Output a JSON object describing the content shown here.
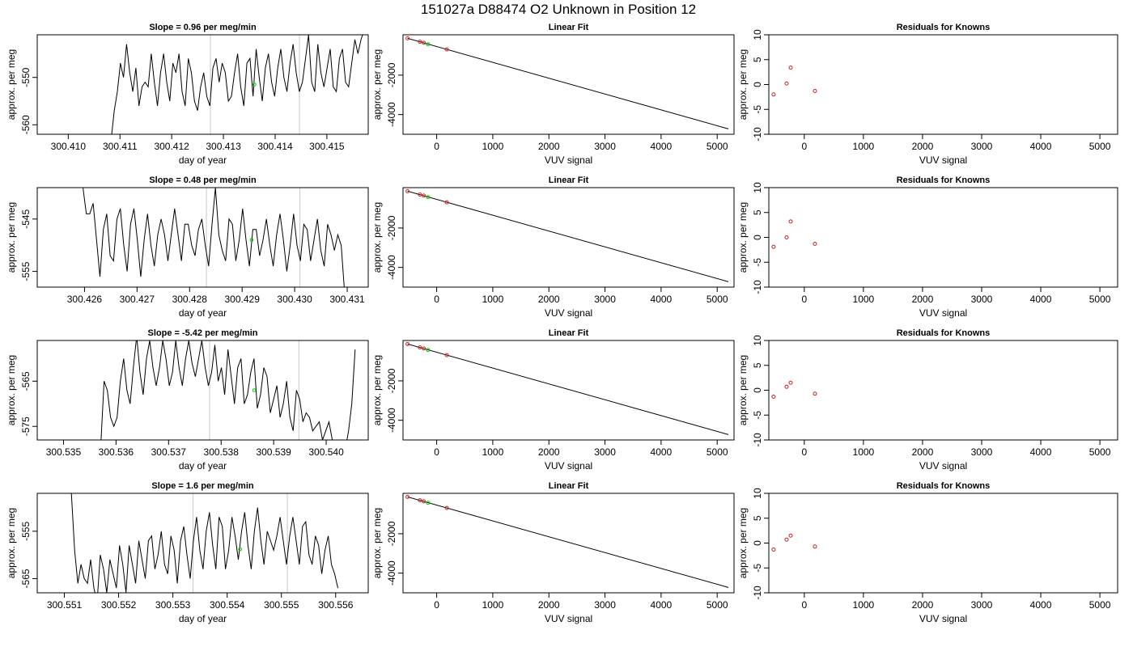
{
  "figure_title": "151027a     D88474   O2 Unknown in Position  12",
  "chart_data": [
    {
      "type": "line",
      "panel_kind": "timeseries",
      "title": "Slope =  0.96  per meg/min",
      "xlabel": "day of year",
      "ylabel": "approx. per meg",
      "xlim": [
        300.4094,
        300.4158
      ],
      "ylim": [
        -562.0,
        -541.0
      ],
      "xticks": [
        300.41,
        300.411,
        300.412,
        300.413,
        300.414,
        300.415
      ],
      "xtick_labels": [
        "300.410",
        "300.411",
        "300.412",
        "300.413",
        "300.414",
        "300.415"
      ],
      "yticks": [
        -550,
        -560
      ],
      "ytick_labels": [
        "-550",
        "-560"
      ],
      "vlines": [
        300.41275,
        300.41447
      ],
      "highlight_point": {
        "x": 300.4136,
        "y": -551.5
      },
      "series": [
        {
          "x_start": 300.41083,
          "x_end": 300.41572,
          "values": [
            -563,
            -557,
            -553,
            -547,
            -550,
            -543,
            -549,
            -553,
            -548,
            -556,
            -552,
            -551,
            -552,
            -545,
            -551,
            -556,
            -549,
            -545,
            -551,
            -555,
            -547,
            -549,
            -545,
            -553,
            -556,
            -546,
            -549,
            -555,
            -557,
            -552,
            -549,
            -554,
            -556,
            -548,
            -546,
            -551,
            -547,
            -549,
            -555,
            -554,
            -549,
            -545,
            -552,
            -556,
            -547,
            -546,
            -554,
            -544,
            -550,
            -555,
            -548,
            -545,
            -551,
            -554,
            -548,
            -544,
            -550,
            -553,
            -547,
            -543,
            -549,
            -553,
            -551,
            -546,
            -541,
            -551,
            -553,
            -543,
            -549,
            -552,
            -548,
            -544,
            -552,
            -553,
            -546,
            -544,
            -551,
            -552,
            -547,
            -542,
            -545,
            -542,
            -540
          ]
        }
      ]
    },
    {
      "type": "scatter",
      "panel_kind": "linear-fit",
      "title": "Linear Fit",
      "xlabel": "VUV signal",
      "ylabel": "approx. per meg",
      "xlim": [
        -600,
        5300
      ],
      "ylim": [
        -5000,
        50
      ],
      "xticks": [
        0,
        1000,
        2000,
        3000,
        4000,
        5000
      ],
      "xtick_labels": [
        "0",
        "1000",
        "2000",
        "3000",
        "4000",
        "5000"
      ],
      "yticks": [
        -2000,
        -4000
      ],
      "ytick_labels": [
        "-2000",
        "-4000"
      ],
      "line": {
        "x0": -520,
        "y0": -128,
        "x1": 5200,
        "y1": -4728
      },
      "known_points": [
        {
          "x": -520,
          "y": -128
        },
        {
          "x": -300,
          "y": -302
        },
        {
          "x": -230,
          "y": -354
        },
        {
          "x": 180,
          "y": -695
        }
      ],
      "unknown_point": {
        "x": -155,
        "y": -430
      }
    },
    {
      "type": "scatter",
      "panel_kind": "residuals",
      "title": "Residuals for Knowns",
      "xlabel": "VUV signal",
      "ylabel": "approx. per meg",
      "xlim": [
        -600,
        5300
      ],
      "ylim": [
        -10,
        10
      ],
      "xticks": [
        0,
        1000,
        2000,
        3000,
        4000,
        5000
      ],
      "xtick_labels": [
        "0",
        "1000",
        "2000",
        "3000",
        "4000",
        "5000"
      ],
      "yticks": [
        10,
        5,
        0,
        -5,
        -10
      ],
      "ytick_labels": [
        "10",
        "5",
        "0",
        "-5",
        "-10"
      ],
      "points": [
        {
          "x": -520,
          "y": -2.0
        },
        {
          "x": -300,
          "y": 0.2
        },
        {
          "x": -230,
          "y": 3.4
        },
        {
          "x": 180,
          "y": -1.3
        }
      ]
    },
    {
      "type": "line",
      "panel_kind": "timeseries",
      "title": "Slope =  0.48  per meg/min",
      "xlabel": "day of year",
      "ylabel": "approx. per meg",
      "xlim": [
        300.4251,
        300.4314
      ],
      "ylim": [
        -558.0,
        -539.0
      ],
      "xticks": [
        300.426,
        300.427,
        300.428,
        300.429,
        300.43,
        300.431
      ],
      "xtick_labels": [
        "300.426",
        "300.427",
        "300.428",
        "300.429",
        "300.430",
        "300.431"
      ],
      "yticks": [
        -545,
        -555
      ],
      "ytick_labels": [
        "-545",
        "-555"
      ],
      "vlines": [
        300.42832,
        300.4301
      ],
      "highlight_point": {
        "x": 300.42918,
        "y": -549.0
      },
      "series": [
        {
          "x_start": 300.42597,
          "x_end": 300.43095,
          "values": [
            -539,
            -544,
            -544,
            -542,
            -549,
            -556,
            -547,
            -544,
            -552,
            -553,
            -545,
            -543,
            -550,
            -555,
            -546,
            -543,
            -549,
            -556,
            -549,
            -544,
            -550,
            -554,
            -548,
            -545,
            -548,
            -553,
            -548,
            -543,
            -548,
            -553,
            -546,
            -546,
            -550,
            -552,
            -547,
            -545,
            -550,
            -554,
            -546,
            -539,
            -548,
            -551,
            -553,
            -545,
            -546,
            -553,
            -549,
            -543,
            -549,
            -554,
            -547,
            -547,
            -552,
            -549,
            -545,
            -550,
            -554,
            -548,
            -544,
            -549,
            -555,
            -550,
            -544,
            -550,
            -553,
            -546,
            -547,
            -553,
            -549,
            -545,
            -551,
            -554,
            -546,
            -548,
            -551,
            -548,
            -550,
            -559
          ]
        }
      ]
    },
    {
      "type": "scatter",
      "panel_kind": "linear-fit",
      "title": "Linear Fit",
      "xlabel": "VUV signal",
      "ylabel": "approx. per meg",
      "xlim": [
        -600,
        5300
      ],
      "ylim": [
        -5000,
        50
      ],
      "xticks": [
        0,
        1000,
        2000,
        3000,
        4000,
        5000
      ],
      "xtick_labels": [
        "0",
        "1000",
        "2000",
        "3000",
        "4000",
        "5000"
      ],
      "yticks": [
        -2000,
        -4000
      ],
      "ytick_labels": [
        "-2000",
        "-4000"
      ],
      "line": {
        "x0": -520,
        "y0": -128,
        "x1": 5200,
        "y1": -4728
      },
      "known_points": [
        {
          "x": -520,
          "y": -128
        },
        {
          "x": -300,
          "y": -302
        },
        {
          "x": -230,
          "y": -354
        },
        {
          "x": 180,
          "y": -695
        }
      ],
      "unknown_point": {
        "x": -155,
        "y": -430
      }
    },
    {
      "type": "scatter",
      "panel_kind": "residuals",
      "title": "Residuals for Knowns",
      "xlabel": "VUV signal",
      "ylabel": "approx. per meg",
      "xlim": [
        -600,
        5300
      ],
      "ylim": [
        -10,
        10
      ],
      "xticks": [
        0,
        1000,
        2000,
        3000,
        4000,
        5000
      ],
      "xtick_labels": [
        "0",
        "1000",
        "2000",
        "3000",
        "4000",
        "5000"
      ],
      "yticks": [
        10,
        5,
        0,
        -5,
        -10
      ],
      "ytick_labels": [
        "10",
        "5",
        "0",
        "-5",
        "-10"
      ],
      "points": [
        {
          "x": -520,
          "y": -1.9
        },
        {
          "x": -300,
          "y": 0.0
        },
        {
          "x": -230,
          "y": 3.2
        },
        {
          "x": 180,
          "y": -1.3
        }
      ]
    },
    {
      "type": "line",
      "panel_kind": "timeseries",
      "title": "Slope =  -5.42  per meg/min",
      "xlabel": "day of year",
      "ylabel": "approx. per meg",
      "xlim": [
        300.5345,
        300.5408
      ],
      "ylim": [
        -578.0,
        -556.0
      ],
      "xticks": [
        300.535,
        300.536,
        300.537,
        300.538,
        300.539,
        300.54
      ],
      "xtick_labels": [
        "300.535",
        "300.536",
        "300.537",
        "300.538",
        "300.539",
        "300.540"
      ],
      "yticks": [
        -565,
        -575
      ],
      "ytick_labels": [
        "-565",
        "-575"
      ],
      "vlines": [
        300.53778,
        300.53948
      ],
      "highlight_point": {
        "x": 300.53863,
        "y": -567.0
      },
      "series": [
        {
          "x_start": 300.53571,
          "x_end": 300.54055,
          "values": [
            -579,
            -565,
            -567,
            -573,
            -575,
            -573,
            -565,
            -560,
            -567,
            -570,
            -562,
            -555,
            -563,
            -568,
            -560,
            -556,
            -562,
            -566,
            -562,
            -556,
            -560,
            -566,
            -563,
            -556,
            -562,
            -566,
            -560,
            -556,
            -561,
            -564,
            -560,
            -556,
            -562,
            -566,
            -563,
            -557,
            -565,
            -562,
            -568,
            -558,
            -564,
            -570,
            -562,
            -560,
            -570,
            -568,
            -563,
            -560,
            -571,
            -568,
            -562,
            -564,
            -572,
            -569,
            -566,
            -573,
            -570,
            -565,
            -573,
            -576,
            -567,
            -569,
            -574,
            -572,
            -573,
            -576,
            -575,
            -574,
            -578,
            -576,
            -574,
            -578,
            -580,
            -579,
            -578,
            -580,
            -576,
            -570,
            -558
          ]
        }
      ]
    },
    {
      "type": "scatter",
      "panel_kind": "linear-fit",
      "title": "Linear Fit",
      "xlabel": "VUV signal",
      "ylabel": "approx. per meg",
      "xlim": [
        -600,
        5300
      ],
      "ylim": [
        -5000,
        50
      ],
      "xticks": [
        0,
        1000,
        2000,
        3000,
        4000,
        5000
      ],
      "xtick_labels": [
        "0",
        "1000",
        "2000",
        "3000",
        "4000",
        "5000"
      ],
      "yticks": [
        -2000,
        -4000
      ],
      "ytick_labels": [
        "-2000",
        "-4000"
      ],
      "line": {
        "x0": -520,
        "y0": -128,
        "x1": 5200,
        "y1": -4728
      },
      "known_points": [
        {
          "x": -520,
          "y": -128
        },
        {
          "x": -300,
          "y": -302
        },
        {
          "x": -230,
          "y": -354
        },
        {
          "x": 180,
          "y": -695
        }
      ],
      "unknown_point": {
        "x": -155,
        "y": -430
      }
    },
    {
      "type": "scatter",
      "panel_kind": "residuals",
      "title": "Residuals for Knowns",
      "xlabel": "VUV signal",
      "ylabel": "approx. per meg",
      "xlim": [
        -600,
        5300
      ],
      "ylim": [
        -10,
        10
      ],
      "xticks": [
        0,
        1000,
        2000,
        3000,
        4000,
        5000
      ],
      "xtick_labels": [
        "0",
        "1000",
        "2000",
        "3000",
        "4000",
        "5000"
      ],
      "yticks": [
        10,
        5,
        0,
        -5,
        -10
      ],
      "ytick_labels": [
        "10",
        "5",
        "0",
        "-5",
        "-10"
      ],
      "points": [
        {
          "x": -520,
          "y": -1.3
        },
        {
          "x": -300,
          "y": 0.7
        },
        {
          "x": -230,
          "y": 1.5
        },
        {
          "x": 180,
          "y": -0.7
        }
      ]
    },
    {
      "type": "line",
      "panel_kind": "timeseries",
      "title": "Slope =  1.6  per meg/min",
      "xlabel": "day of year",
      "ylabel": "approx. per meg",
      "xlim": [
        300.5505,
        300.5566
      ],
      "ylim": [
        -568.0,
        -547.0
      ],
      "xticks": [
        300.551,
        300.552,
        300.553,
        300.554,
        300.555,
        300.556
      ],
      "xtick_labels": [
        "300.551",
        "300.552",
        "300.553",
        "300.554",
        "300.555",
        "300.556"
      ],
      "yticks": [
        -555,
        -565
      ],
      "ytick_labels": [
        "-555",
        "-565"
      ],
      "vlines": [
        300.55337,
        300.55511
      ],
      "highlight_point": {
        "x": 300.55424,
        "y": -558.8
      },
      "series": [
        {
          "x_start": 300.55113,
          "x_end": 300.55604,
          "values": [
            -547,
            -559,
            -566,
            -562,
            -565,
            -566,
            -561,
            -567,
            -570,
            -560,
            -563,
            -568,
            -561,
            -564,
            -567,
            -558,
            -562,
            -568,
            -558,
            -562,
            -566,
            -557,
            -561,
            -565,
            -557,
            -556,
            -563,
            -560,
            -555,
            -562,
            -564,
            -556,
            -559,
            -566,
            -557,
            -554,
            -560,
            -565,
            -557,
            -552,
            -559,
            -563,
            -555,
            -551,
            -558,
            -563,
            -552,
            -554,
            -563,
            -559,
            -552,
            -556,
            -561,
            -555,
            -551,
            -558,
            -563,
            -555,
            -550,
            -557,
            -562,
            -555,
            -557,
            -559,
            -556,
            -552,
            -557,
            -562,
            -556,
            -552,
            -557,
            -562,
            -554,
            -553,
            -560,
            -562,
            -556,
            -558,
            -564,
            -559,
            -556,
            -562,
            -564,
            -567
          ]
        }
      ]
    },
    {
      "type": "scatter",
      "panel_kind": "linear-fit",
      "title": "Linear Fit",
      "xlabel": "VUV signal",
      "ylabel": "approx. per meg",
      "xlim": [
        -600,
        5300
      ],
      "ylim": [
        -5000,
        50
      ],
      "xticks": [
        0,
        1000,
        2000,
        3000,
        4000,
        5000
      ],
      "xtick_labels": [
        "0",
        "1000",
        "2000",
        "3000",
        "4000",
        "5000"
      ],
      "yticks": [
        -2000,
        -4000
      ],
      "ytick_labels": [
        "-2000",
        "-4000"
      ],
      "line": {
        "x0": -520,
        "y0": -128,
        "x1": 5200,
        "y1": -4728
      },
      "known_points": [
        {
          "x": -520,
          "y": -128
        },
        {
          "x": -300,
          "y": -302
        },
        {
          "x": -230,
          "y": -354
        },
        {
          "x": 180,
          "y": -695
        }
      ],
      "unknown_point": {
        "x": -155,
        "y": -430
      }
    },
    {
      "type": "scatter",
      "panel_kind": "residuals",
      "title": "Residuals for Knowns",
      "xlabel": "VUV signal",
      "ylabel": "approx. per meg",
      "xlim": [
        -600,
        5300
      ],
      "ylim": [
        -10,
        10
      ],
      "xticks": [
        0,
        1000,
        2000,
        3000,
        4000,
        5000
      ],
      "xtick_labels": [
        "0",
        "1000",
        "2000",
        "3000",
        "4000",
        "5000"
      ],
      "yticks": [
        10,
        5,
        0,
        -5,
        -10
      ],
      "ytick_labels": [
        "10",
        "5",
        "0",
        "-5",
        "-10"
      ],
      "points": [
        {
          "x": -520,
          "y": -1.3
        },
        {
          "x": -300,
          "y": 0.7
        },
        {
          "x": -230,
          "y": 1.5
        },
        {
          "x": 180,
          "y": -0.7
        }
      ]
    }
  ]
}
